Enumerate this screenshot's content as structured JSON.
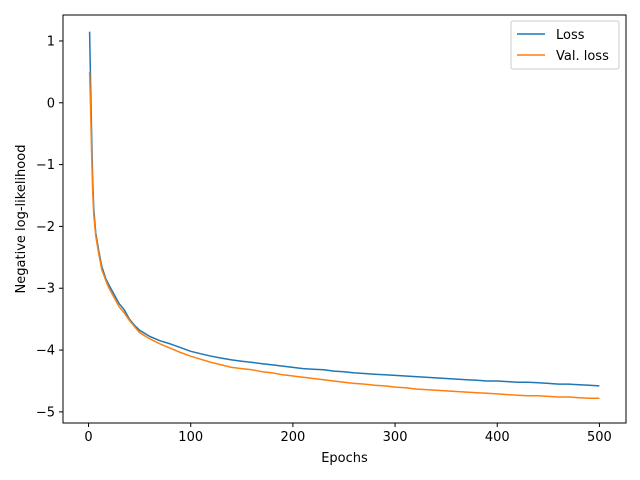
{
  "chart_data": {
    "type": "line",
    "title": "",
    "xlabel": "Epochs",
    "ylabel": "Negative log-likelihood",
    "xlim": [
      -25,
      526
    ],
    "ylim": [
      -5.18,
      1.42
    ],
    "xticks": [
      0,
      100,
      200,
      300,
      400,
      500
    ],
    "yticks": [
      1,
      0,
      -1,
      -2,
      -3,
      -4,
      -5
    ],
    "ytick_labels": [
      "1",
      "0",
      "−1",
      "−2",
      "−3",
      "−4",
      "−5"
    ],
    "grid": false,
    "legend": {
      "placement": "top-right"
    },
    "series": [
      {
        "name": "Loss",
        "color": "#1f77b4",
        "points": [
          [
            1,
            1.15
          ],
          [
            2,
            0.3
          ],
          [
            3,
            -0.5
          ],
          [
            4,
            -1.2
          ],
          [
            5,
            -1.7
          ],
          [
            7,
            -2.1
          ],
          [
            10,
            -2.4
          ],
          [
            13,
            -2.65
          ],
          [
            17,
            -2.85
          ],
          [
            20,
            -2.95
          ],
          [
            25,
            -3.1
          ],
          [
            30,
            -3.25
          ],
          [
            35,
            -3.35
          ],
          [
            40,
            -3.5
          ],
          [
            45,
            -3.6
          ],
          [
            50,
            -3.68
          ],
          [
            60,
            -3.78
          ],
          [
            70,
            -3.85
          ],
          [
            80,
            -3.9
          ],
          [
            90,
            -3.96
          ],
          [
            100,
            -4.02
          ],
          [
            110,
            -4.06
          ],
          [
            120,
            -4.1
          ],
          [
            130,
            -4.13
          ],
          [
            140,
            -4.16
          ],
          [
            150,
            -4.18
          ],
          [
            160,
            -4.2
          ],
          [
            170,
            -4.22
          ],
          [
            180,
            -4.24
          ],
          [
            190,
            -4.26
          ],
          [
            200,
            -4.28
          ],
          [
            210,
            -4.3
          ],
          [
            220,
            -4.31
          ],
          [
            230,
            -4.32
          ],
          [
            240,
            -4.34
          ],
          [
            250,
            -4.35
          ],
          [
            260,
            -4.37
          ],
          [
            270,
            -4.38
          ],
          [
            280,
            -4.39
          ],
          [
            290,
            -4.4
          ],
          [
            300,
            -4.41
          ],
          [
            310,
            -4.42
          ],
          [
            320,
            -4.43
          ],
          [
            330,
            -4.44
          ],
          [
            340,
            -4.45
          ],
          [
            350,
            -4.46
          ],
          [
            360,
            -4.47
          ],
          [
            370,
            -4.48
          ],
          [
            380,
            -4.49
          ],
          [
            390,
            -4.5
          ],
          [
            400,
            -4.5
          ],
          [
            410,
            -4.51
          ],
          [
            420,
            -4.52
          ],
          [
            430,
            -4.52
          ],
          [
            440,
            -4.53
          ],
          [
            450,
            -4.54
          ],
          [
            460,
            -4.55
          ],
          [
            470,
            -4.55
          ],
          [
            480,
            -4.56
          ],
          [
            490,
            -4.57
          ],
          [
            500,
            -4.58
          ]
        ]
      },
      {
        "name": "Val. loss",
        "color": "#ff7f0e",
        "points": [
          [
            1,
            0.5
          ],
          [
            2,
            -0.1
          ],
          [
            3,
            -0.8
          ],
          [
            4,
            -1.4
          ],
          [
            5,
            -1.8
          ],
          [
            7,
            -2.15
          ],
          [
            10,
            -2.45
          ],
          [
            13,
            -2.7
          ],
          [
            17,
            -2.88
          ],
          [
            20,
            -3.0
          ],
          [
            25,
            -3.15
          ],
          [
            30,
            -3.3
          ],
          [
            35,
            -3.4
          ],
          [
            40,
            -3.52
          ],
          [
            45,
            -3.62
          ],
          [
            50,
            -3.72
          ],
          [
            60,
            -3.82
          ],
          [
            70,
            -3.9
          ],
          [
            80,
            -3.97
          ],
          [
            90,
            -4.04
          ],
          [
            100,
            -4.1
          ],
          [
            110,
            -4.15
          ],
          [
            120,
            -4.2
          ],
          [
            130,
            -4.24
          ],
          [
            140,
            -4.28
          ],
          [
            150,
            -4.3
          ],
          [
            160,
            -4.32
          ],
          [
            170,
            -4.35
          ],
          [
            180,
            -4.37
          ],
          [
            190,
            -4.4
          ],
          [
            200,
            -4.42
          ],
          [
            210,
            -4.44
          ],
          [
            220,
            -4.46
          ],
          [
            230,
            -4.48
          ],
          [
            240,
            -4.5
          ],
          [
            250,
            -4.52
          ],
          [
            260,
            -4.54
          ],
          [
            270,
            -4.55
          ],
          [
            280,
            -4.57
          ],
          [
            290,
            -4.58
          ],
          [
            300,
            -4.6
          ],
          [
            310,
            -4.61
          ],
          [
            320,
            -4.63
          ],
          [
            330,
            -4.64
          ],
          [
            340,
            -4.65
          ],
          [
            350,
            -4.66
          ],
          [
            360,
            -4.67
          ],
          [
            370,
            -4.68
          ],
          [
            380,
            -4.69
          ],
          [
            390,
            -4.7
          ],
          [
            400,
            -4.71
          ],
          [
            410,
            -4.72
          ],
          [
            420,
            -4.73
          ],
          [
            430,
            -4.74
          ],
          [
            440,
            -4.74
          ],
          [
            450,
            -4.75
          ],
          [
            460,
            -4.76
          ],
          [
            470,
            -4.76
          ],
          [
            480,
            -4.77
          ],
          [
            490,
            -4.78
          ],
          [
            500,
            -4.78
          ]
        ]
      }
    ]
  }
}
